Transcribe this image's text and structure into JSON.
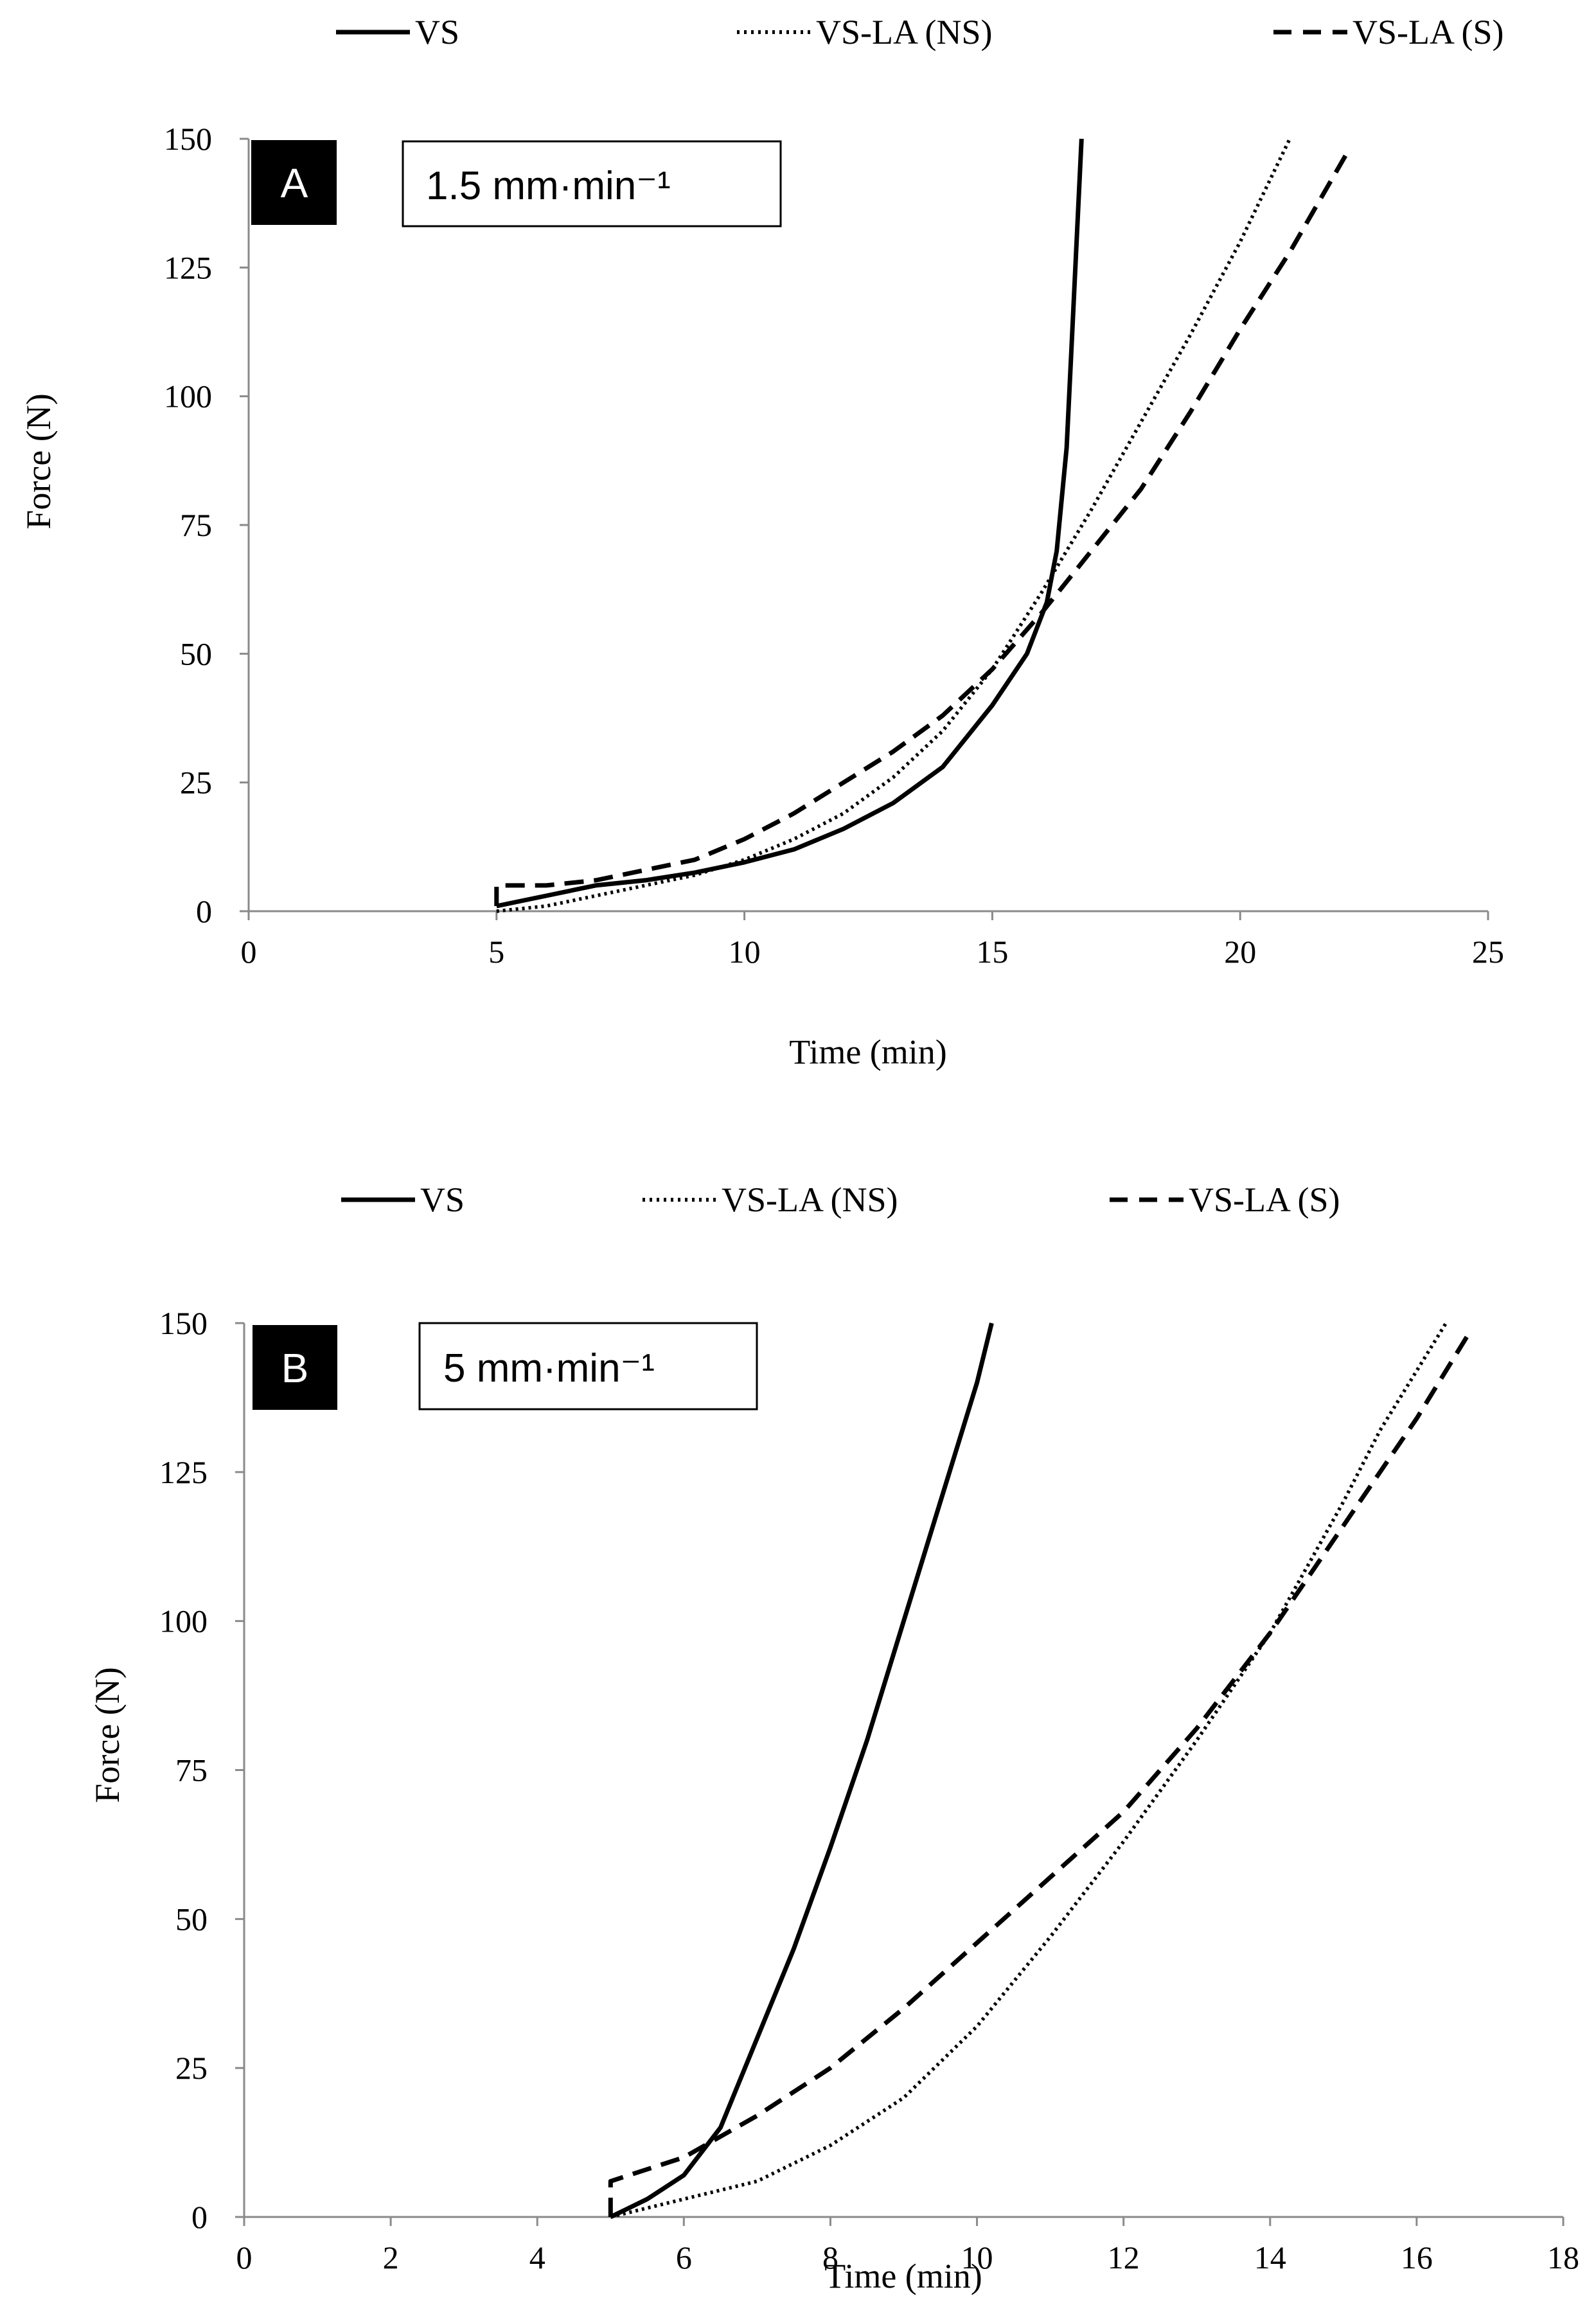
{
  "chart_data": [
    {
      "type": "line",
      "panel_label": "A",
      "annotation": "1.5 mm·min⁻¹",
      "xlabel": "Time (min)",
      "ylabel": "Force (N)",
      "xlim": [
        0,
        25
      ],
      "ylim": [
        0,
        150
      ],
      "xticks": [
        "0",
        "5",
        "10",
        "15",
        "20",
        "25"
      ],
      "yticks": [
        "0",
        "25",
        "50",
        "75",
        "100",
        "125",
        "150"
      ],
      "legend": [
        "VS",
        "VS-LA (NS)",
        "VS-LA (S)"
      ],
      "legend_position": "top",
      "series": [
        {
          "name": "VS",
          "style": "solid",
          "x": [
            5,
            6,
            7,
            8,
            9,
            10,
            11,
            12,
            13,
            14,
            15,
            15.7,
            16.1,
            16.3,
            16.5,
            16.6,
            16.7,
            16.8
          ],
          "y": [
            1,
            3,
            5,
            6,
            7.5,
            9.5,
            12,
            16,
            21,
            28,
            40,
            50,
            60,
            70,
            90,
            110,
            130,
            150
          ]
        },
        {
          "name": "VS-LA (NS)",
          "style": "dotted",
          "x": [
            5,
            6,
            7,
            8,
            9,
            10,
            11,
            12,
            13,
            14,
            15,
            16,
            17,
            18,
            19,
            20,
            21
          ],
          "y": [
            0,
            1,
            3,
            5,
            7,
            10,
            14,
            19,
            26,
            35,
            47,
            62,
            78,
            95,
            112,
            130,
            150
          ]
        },
        {
          "name": "VS-LA (S)",
          "style": "dashed",
          "x": [
            5,
            5,
            6,
            7,
            8,
            9,
            10,
            11,
            12,
            13,
            14,
            15,
            16,
            17,
            18,
            19,
            20,
            21,
            22.2
          ],
          "y": [
            1,
            5,
            5,
            6,
            8,
            10,
            14,
            19,
            25,
            31,
            38,
            47,
            58,
            70,
            82,
            97,
            113,
            128,
            148
          ]
        }
      ]
    },
    {
      "type": "line",
      "panel_label": "B",
      "annotation": "5 mm·min⁻¹",
      "xlabel": "Time (min)",
      "ylabel": "Force (N)",
      "xlim": [
        0,
        18
      ],
      "ylim": [
        0,
        150
      ],
      "xticks": [
        "0",
        "2",
        "4",
        "6",
        "8",
        "10",
        "12",
        "14",
        "16",
        "18"
      ],
      "yticks": [
        "0",
        "25",
        "50",
        "75",
        "100",
        "125",
        "150"
      ],
      "legend": [
        "VS",
        "VS-LA (NS)",
        "VS-LA (S)"
      ],
      "legend_position": "top",
      "series": [
        {
          "name": "VS",
          "style": "solid",
          "x": [
            5,
            5.5,
            6,
            6.5,
            7,
            7.5,
            8,
            8.5,
            9,
            9.5,
            10,
            10.2
          ],
          "y": [
            0,
            3,
            7,
            15,
            30,
            45,
            62,
            80,
            100,
            120,
            140,
            150
          ]
        },
        {
          "name": "VS-LA (NS)",
          "style": "dotted",
          "x": [
            5,
            6,
            7,
            8,
            9,
            10,
            11,
            12,
            13,
            14,
            15,
            15.5,
            16,
            16.4
          ],
          "y": [
            0,
            3,
            6,
            12,
            20,
            32,
            47,
            63,
            80,
            98,
            120,
            132,
            142,
            150
          ]
        },
        {
          "name": "VS-LA (S)",
          "style": "dashed",
          "x": [
            5,
            5,
            5.5,
            6,
            7,
            8,
            9,
            10,
            11,
            12,
            13,
            14,
            15,
            16,
            16.7
          ],
          "y": [
            0,
            6,
            8,
            10,
            17,
            25,
            35,
            46,
            57,
            68,
            82,
            98,
            116,
            134,
            148
          ]
        }
      ]
    }
  ]
}
